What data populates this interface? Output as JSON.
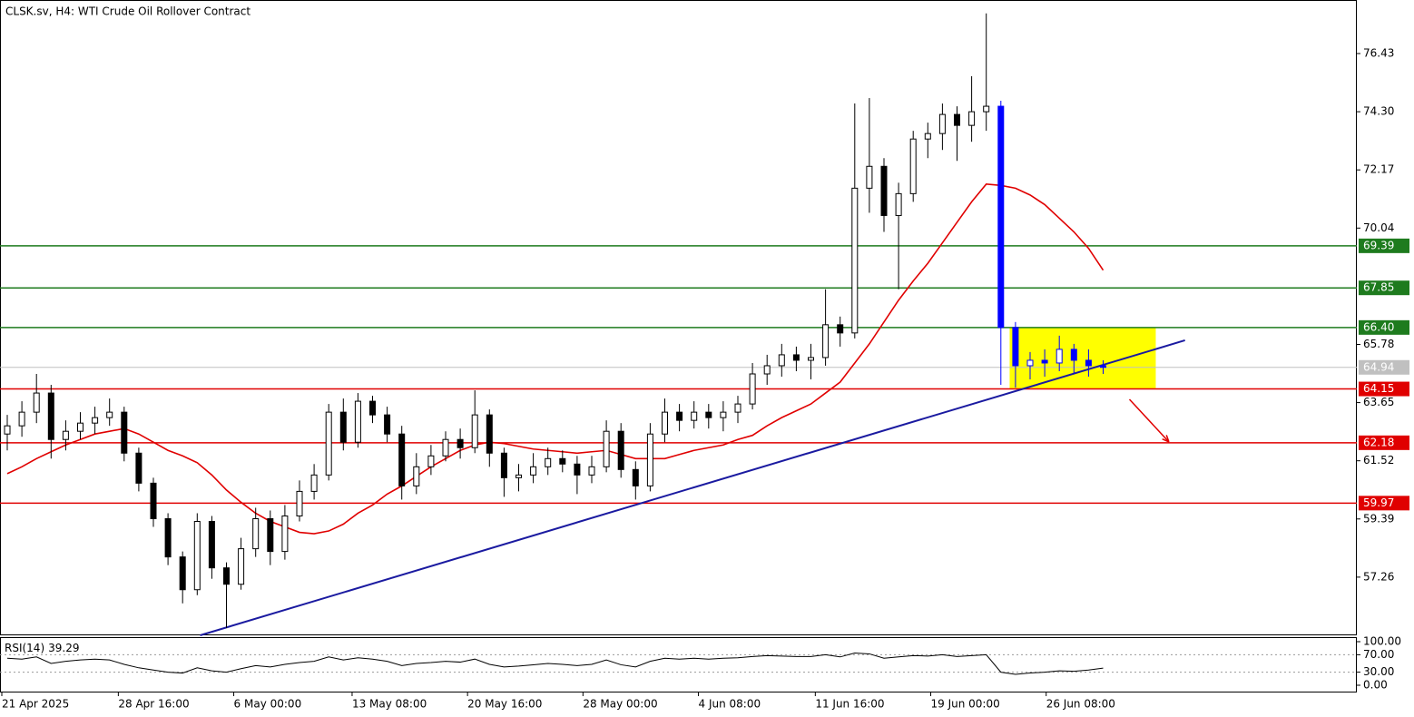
{
  "chart_data": {
    "type": "candlestick",
    "title": "CLSK.sv, H4:  WTI Crude Oil Rollover Contract",
    "candle_color": "#000000",
    "highlight": {
      "color": "#0000ff",
      "from": 68,
      "to": 75
    },
    "open": [
      62.5,
      62.8,
      63.3,
      64.0,
      62.3,
      62.6,
      62.9,
      63.1,
      63.3,
      61.8,
      60.7,
      59.4,
      58.0,
      56.8,
      59.3,
      57.6,
      57.0,
      58.3,
      59.4,
      58.2,
      59.5,
      60.4,
      61.0,
      63.3,
      62.2,
      63.7,
      63.2,
      62.5,
      60.6,
      61.3,
      61.7,
      62.3,
      62.0,
      63.2,
      61.8,
      60.9,
      61.0,
      61.3,
      61.6,
      61.4,
      61.0,
      61.3,
      62.6,
      61.2,
      60.6,
      62.5,
      63.3,
      63.0,
      63.3,
      63.1,
      63.3,
      63.6,
      64.7,
      65.0,
      65.4,
      65.2,
      65.3,
      66.5,
      66.2,
      71.5,
      72.3,
      70.5,
      71.3,
      73.3,
      73.5,
      74.2,
      73.8,
      74.3,
      74.5,
      66.4,
      65.0,
      65.2,
      65.1,
      65.6,
      65.2,
      65.0
    ],
    "high": [
      63.2,
      63.7,
      64.7,
      64.3,
      63.0,
      63.3,
      63.5,
      63.8,
      63.5,
      62.0,
      60.9,
      59.6,
      58.2,
      59.6,
      59.5,
      57.8,
      58.7,
      59.8,
      59.7,
      59.9,
      60.8,
      61.4,
      63.6,
      63.8,
      64.0,
      63.9,
      63.5,
      62.8,
      61.8,
      62.1,
      62.6,
      62.7,
      64.1,
      63.4,
      62.0,
      61.4,
      61.8,
      62.0,
      61.9,
      61.7,
      61.7,
      63.0,
      62.9,
      61.5,
      62.9,
      63.8,
      63.6,
      63.7,
      63.6,
      63.7,
      63.9,
      65.1,
      65.4,
      65.8,
      65.7,
      65.8,
      67.8,
      66.8,
      74.6,
      74.8,
      72.6,
      71.7,
      73.6,
      73.9,
      74.6,
      74.5,
      75.6,
      77.9,
      74.7,
      66.6,
      65.5,
      65.6,
      66.1,
      65.8,
      65.6,
      65.2
    ],
    "low": [
      61.9,
      62.4,
      62.9,
      61.6,
      61.9,
      62.3,
      62.5,
      62.8,
      61.5,
      60.4,
      59.1,
      57.7,
      56.3,
      56.6,
      57.2,
      55.4,
      56.8,
      58.0,
      57.7,
      57.9,
      59.3,
      60.1,
      60.8,
      61.9,
      62.0,
      62.9,
      62.2,
      60.1,
      60.3,
      61.0,
      61.5,
      61.6,
      61.8,
      61.3,
      60.2,
      60.4,
      60.7,
      61.0,
      61.1,
      60.3,
      60.7,
      61.1,
      60.9,
      60.1,
      60.4,
      62.2,
      62.6,
      62.7,
      62.7,
      62.6,
      62.9,
      63.4,
      64.3,
      64.6,
      64.8,
      64.5,
      65.0,
      65.7,
      66.0,
      70.6,
      69.9,
      67.8,
      71.0,
      72.6,
      72.9,
      72.5,
      73.2,
      73.6,
      64.3,
      64.2,
      64.5,
      64.6,
      64.8,
      64.7,
      64.6,
      64.7
    ],
    "close": [
      62.8,
      63.3,
      64.0,
      62.3,
      62.6,
      62.9,
      63.1,
      63.3,
      61.8,
      60.7,
      59.4,
      58.0,
      56.8,
      59.3,
      57.6,
      57.0,
      58.3,
      59.4,
      58.2,
      59.5,
      60.4,
      61.0,
      63.3,
      62.2,
      63.7,
      63.2,
      62.5,
      60.6,
      61.3,
      61.7,
      62.3,
      62.0,
      63.2,
      61.8,
      60.9,
      61.0,
      61.3,
      61.6,
      61.4,
      61.0,
      61.3,
      62.6,
      61.2,
      60.6,
      62.5,
      63.3,
      63.0,
      63.3,
      63.1,
      63.3,
      63.6,
      64.7,
      65.0,
      65.4,
      65.2,
      65.3,
      66.5,
      66.2,
      71.5,
      72.3,
      70.5,
      71.3,
      73.3,
      73.5,
      74.2,
      73.8,
      74.3,
      74.5,
      66.4,
      65.0,
      65.2,
      65.1,
      65.6,
      65.2,
      65.0,
      64.94
    ],
    "ma": {
      "color": "#e00000",
      "values": [
        61.05,
        61.3,
        61.6,
        61.85,
        62.1,
        62.3,
        62.5,
        62.6,
        62.7,
        62.5,
        62.2,
        61.9,
        61.7,
        61.45,
        61.0,
        60.45,
        60.0,
        59.6,
        59.3,
        59.1,
        58.9,
        58.85,
        58.95,
        59.2,
        59.6,
        59.9,
        60.3,
        60.6,
        60.95,
        61.3,
        61.6,
        61.9,
        62.1,
        62.2,
        62.15,
        62.05,
        61.95,
        61.9,
        61.85,
        61.8,
        61.85,
        61.9,
        61.75,
        61.6,
        61.6,
        61.6,
        61.75,
        61.9,
        62.0,
        62.1,
        62.3,
        62.45,
        62.8,
        63.1,
        63.35,
        63.6,
        64.0,
        64.4,
        65.1,
        65.8,
        66.6,
        67.4,
        68.1,
        68.75,
        69.5,
        70.25,
        71.0,
        71.65,
        71.6,
        71.5,
        71.25,
        70.9,
        70.4,
        69.9,
        69.3,
        68.5
      ]
    },
    "ylim": [
      55.13,
      78.39
    ],
    "yticks": [
      76.43,
      {
        "value": 74.3,
        "label": "74.30"
      },
      72.17,
      70.04,
      65.78,
      63.65,
      61.52,
      59.39,
      57.26
    ],
    "levels": [
      {
        "value": 69.39,
        "color": "#1e7b1e"
      },
      {
        "value": 67.85,
        "color": "#1e7b1e"
      },
      {
        "value": 66.4,
        "label": "66.40",
        "color": "#1e7b1e"
      },
      {
        "value": 64.15,
        "color": "#e00000"
      },
      {
        "value": 62.18,
        "color": "#e00000"
      },
      {
        "value": 59.97,
        "color": "#e00000"
      }
    ],
    "current": {
      "value": 64.94,
      "color": "#c0c0c0"
    },
    "trendline": {
      "color": "#1a1aa0",
      "from": [
        13.2,
        55.13
      ],
      "to": [
        80.6,
        65.93
      ]
    },
    "box": {
      "color": "#ffff00",
      "from": 68.6,
      "to": 78.6,
      "top": 66.4,
      "bottom": 64.15
    },
    "arrow": {
      "color": "#e00000",
      "from": [
        76.8,
        63.77
      ],
      "to": [
        79.5,
        62.21
      ]
    },
    "xticks": [
      {
        "value": -0.4,
        "label": "21 Apr 2025"
      },
      {
        "value": 7.6,
        "label": "28 Apr 16:00"
      },
      {
        "value": 15.5,
        "label": "6 May 00:00"
      },
      {
        "value": 23.6,
        "label": "13 May 08:00"
      },
      {
        "value": 31.5,
        "label": "20 May 16:00"
      },
      {
        "value": 39.4,
        "label": "28 May 00:00"
      },
      {
        "value": 47.3,
        "label": "4 Jun 08:00"
      },
      {
        "value": 55.3,
        "label": "11 Jun 16:00"
      },
      {
        "value": 63.2,
        "label": "19 Jun 00:00"
      },
      {
        "value": 71.1,
        "label": "26 Jun 08:00"
      }
    ],
    "rsi": {
      "name": "RSI(14)",
      "current": 39.29,
      "color": "#000000",
      "ylim": [
        0,
        100
      ],
      "yticks": [
        {
          "value": 100,
          "label": "100.00"
        },
        {
          "value": 70,
          "label": "70.00"
        },
        {
          "value": 30,
          "label": "30.00"
        },
        {
          "value": 0,
          "label": "0.00"
        }
      ],
      "values": [
        62,
        60,
        65,
        50,
        55,
        58,
        60,
        58,
        48,
        40,
        35,
        30,
        28,
        40,
        33,
        30,
        38,
        45,
        42,
        48,
        52,
        55,
        65,
        58,
        63,
        60,
        55,
        45,
        50,
        52,
        55,
        53,
        60,
        48,
        42,
        44,
        47,
        50,
        48,
        45,
        48,
        58,
        47,
        42,
        55,
        62,
        60,
        62,
        60,
        62,
        63,
        66,
        68,
        67,
        66,
        66,
        70,
        65,
        74,
        72,
        62,
        65,
        68,
        67,
        70,
        66,
        68,
        70,
        30,
        25,
        28,
        30,
        33,
        32,
        35,
        39.29
      ]
    }
  }
}
